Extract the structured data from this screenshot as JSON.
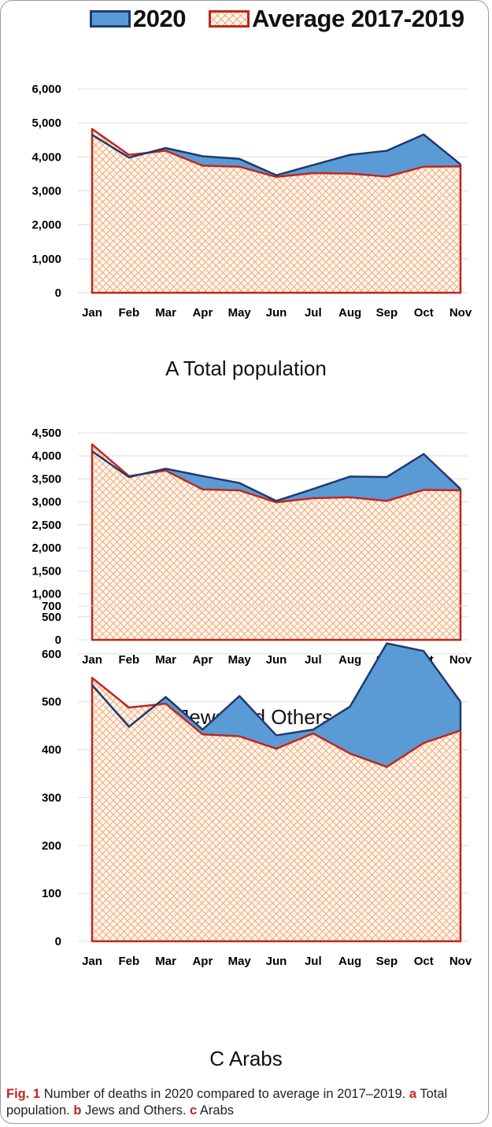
{
  "legend": {
    "series_2020": "2020",
    "series_avg": "Average 2017-2019"
  },
  "panels": [
    {
      "caption": "A Total population"
    },
    {
      "caption": "B Jews and Others"
    },
    {
      "caption": "C Arabs"
    }
  ],
  "figure_caption": {
    "label": "Fig. 1",
    "text": "Number of deaths in 2020 compared to average in 2017–2019.",
    "part_a_letter": "a",
    "part_a_text": "Total population.",
    "part_b_letter": "b",
    "part_b_text": "Jews and Others.",
    "part_c_letter": "c",
    "part_c_text": "Arabs"
  },
  "colors": {
    "fill_2020": "#5b9bd5",
    "line_2020": "#1f3a6e",
    "line_avg": "#c0271c",
    "hatch_avg": "#f1a77a",
    "fill_avg_bg": "#fff7ee",
    "caption_accent": "#c0271c"
  },
  "chart_data": [
    {
      "type": "area",
      "title": "A Total population",
      "categories": [
        "Jan",
        "Feb",
        "Mar",
        "Apr",
        "May",
        "Jun",
        "Jul",
        "Aug",
        "Sep",
        "Oct",
        "Nov"
      ],
      "yticks": [
        "0",
        "1,000",
        "2,000",
        "3,000",
        "4,000",
        "5,000",
        "6,000"
      ],
      "ylim": [
        0,
        6000
      ],
      "grid": true,
      "legend": "top",
      "series": [
        {
          "name": "2020",
          "values": [
            4650,
            3980,
            4260,
            4020,
            3940,
            3460,
            3760,
            4060,
            4180,
            4660,
            3780
          ]
        },
        {
          "name": "Average 2017-2019",
          "values": [
            4820,
            4060,
            4180,
            3740,
            3710,
            3410,
            3520,
            3510,
            3420,
            3710,
            3720
          ]
        }
      ]
    },
    {
      "type": "area",
      "title": "B Jews and Others",
      "categories": [
        "Jan",
        "Feb",
        "Mar",
        "Apr",
        "May",
        "Jun",
        "Jul",
        "Aug",
        "Sep",
        "Oct",
        "Nov"
      ],
      "yticks": [
        "0",
        "500",
        "1,000",
        "1,500",
        "2,000",
        "2,500",
        "3,000",
        "3,500",
        "4,000",
        "4,500"
      ],
      "ylim": [
        0,
        4500
      ],
      "grid": true,
      "legend": "top",
      "series": [
        {
          "name": "2020",
          "values": [
            4100,
            3540,
            3720,
            3560,
            3410,
            3020,
            3280,
            3550,
            3540,
            4040,
            3280
          ]
        },
        {
          "name": "Average 2017-2019",
          "values": [
            4250,
            3560,
            3680,
            3270,
            3250,
            2990,
            3080,
            3100,
            3020,
            3260,
            3250
          ]
        }
      ]
    },
    {
      "type": "area",
      "title": "C Arabs",
      "categories": [
        "Jan",
        "Feb",
        "Mar",
        "Apr",
        "May",
        "Jun",
        "Jul",
        "Aug",
        "Sep",
        "Oct",
        "Nov"
      ],
      "yticks": [
        "0",
        "100",
        "200",
        "300",
        "400",
        "500",
        "600",
        "700"
      ],
      "ylim": [
        0,
        700
      ],
      "grid": true,
      "legend": "top",
      "series": [
        {
          "name": "2020",
          "values": [
            535,
            448,
            510,
            442,
            512,
            430,
            442,
            490,
            622,
            606,
            500
          ]
        },
        {
          "name": "Average 2017-2019",
          "values": [
            550,
            488,
            496,
            432,
            428,
            402,
            434,
            392,
            364,
            414,
            440
          ]
        }
      ]
    }
  ]
}
